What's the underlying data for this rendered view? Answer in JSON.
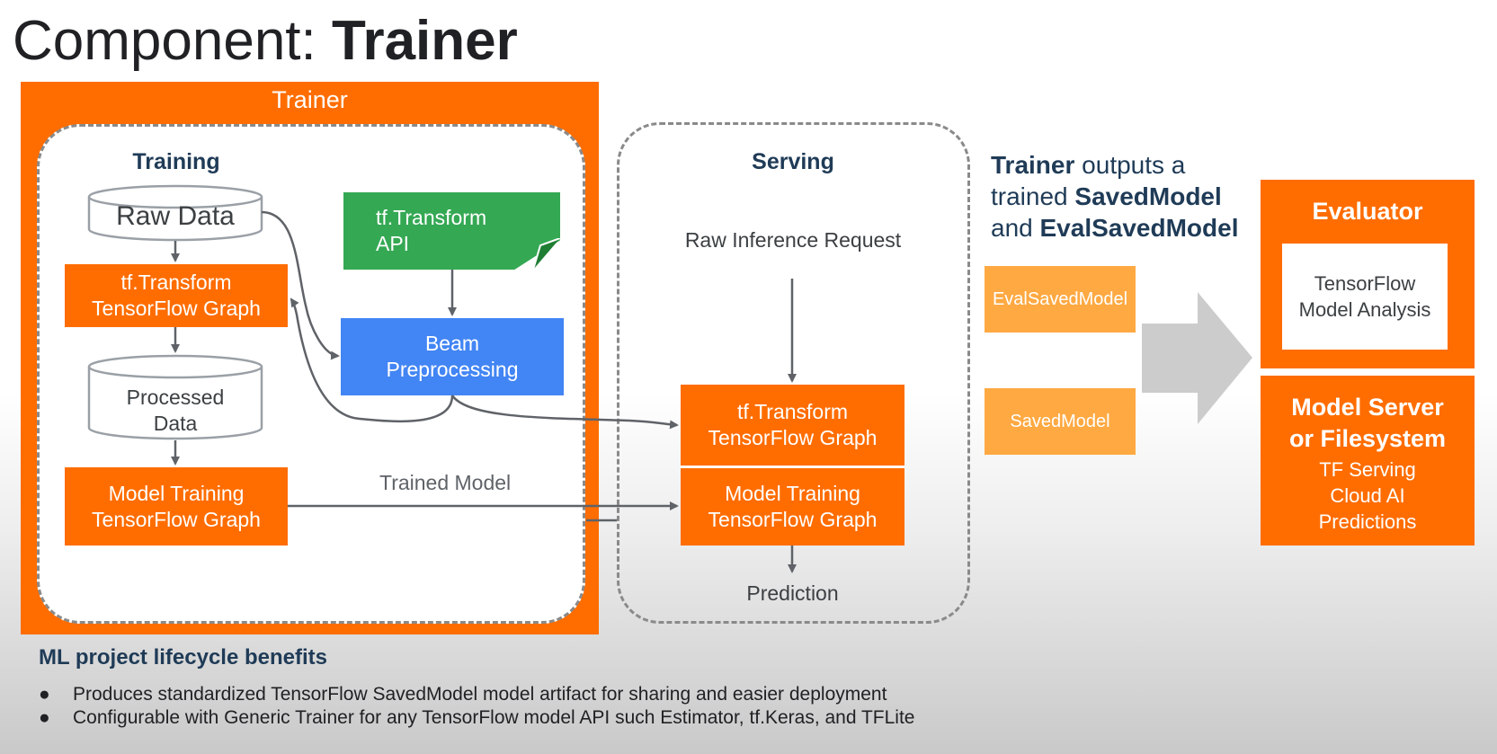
{
  "title": {
    "prefix": "Component: ",
    "bold": "Trainer"
  },
  "trainer": {
    "label": "Trainer",
    "training": {
      "title": "Training",
      "raw_data": "Raw Data",
      "tf_transform_graph": [
        "tf.Transform",
        "TensorFlow Graph"
      ],
      "processed_data": [
        "Processed",
        "Data"
      ],
      "model_training_graph": [
        "Model Training",
        "TensorFlow Graph"
      ],
      "tf_transform_api": [
        "tf.Transform",
        "API"
      ],
      "beam_preprocessing": [
        "Beam",
        "Preprocessing"
      ],
      "trained_model": "Trained Model"
    }
  },
  "serving": {
    "title": "Serving",
    "raw_inference_request": "Raw Inference Request",
    "tf_transform_graph": [
      "tf.Transform",
      "TensorFlow Graph"
    ],
    "model_training_graph": [
      "Model Training",
      "TensorFlow Graph"
    ],
    "prediction": "Prediction"
  },
  "outputs": {
    "line1_bold": "Trainer",
    "line1_rest": " outputs a",
    "line2_plain": "trained ",
    "line2_bold": "SavedModel",
    "line3_plain": "and ",
    "line3_bold": "EvalSavedModel"
  },
  "artifacts": {
    "eval_saved_model": "EvalSavedModel",
    "saved_model": "SavedModel"
  },
  "evaluator": {
    "title": "Evaluator",
    "tfma": [
      "TensorFlow",
      "Model Analysis"
    ]
  },
  "model_server": {
    "title": [
      "Model Server",
      "or Filesystem"
    ],
    "items": [
      "TF Serving",
      "Cloud AI",
      "Predictions"
    ]
  },
  "benefits": {
    "title": "ML project lifecycle benefits",
    "bullet_char": "●",
    "items": [
      "Produces standardized TensorFlow SavedModel model artifact for sharing and easier deployment",
      "Configurable with Generic Trainer for any TensorFlow model API such Estimator, tf.Keras, and TFLite"
    ]
  },
  "colors": {
    "orange": "#ff6d00",
    "light_orange": "#ffa942",
    "green": "#34a853",
    "blue": "#4285f4",
    "navy_text": "#1f3b57",
    "arrow_gray": "#5f6368",
    "big_arrow_gray": "#cccccc"
  }
}
